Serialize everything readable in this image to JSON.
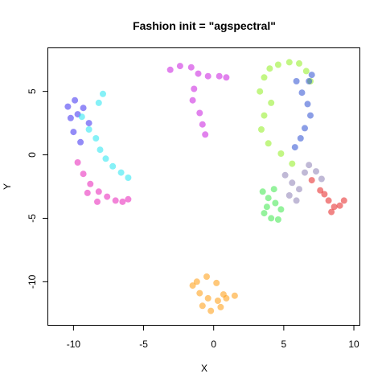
{
  "chart_data": {
    "type": "scatter",
    "title": "Fashion init = \"agspectral\"",
    "xlabel": "X",
    "ylabel": "Y",
    "xlim": [
      -11.8,
      10.4
    ],
    "ylim": [
      -13.4,
      8.4
    ],
    "xticks": [
      -10,
      -5,
      0,
      5,
      10
    ],
    "yticks": [
      -10,
      -5,
      0,
      5
    ],
    "grid": false,
    "legend": "none",
    "clusters": [
      {
        "color": "#3a2cf0",
        "x": [
          -10.4,
          -9.9,
          -9.7,
          -10.2,
          -9.3,
          -8.9,
          -10.0,
          -9.5
        ],
        "y": [
          3.8,
          4.3,
          3.2,
          2.9,
          3.7,
          2.5,
          1.8,
          1.0
        ]
      },
      {
        "color": "#22e6f0",
        "x": [
          -9.4,
          -8.9,
          -8.4,
          -8.1,
          -7.7,
          -7.2,
          -6.6,
          -6.1,
          -8.2,
          -7.9
        ],
        "y": [
          3.0,
          2.0,
          1.3,
          0.4,
          -0.3,
          -0.9,
          -1.4,
          -1.8,
          4.1,
          4.8
        ]
      },
      {
        "color": "#e81fb8",
        "x": [
          -9.7,
          -9.3,
          -8.8,
          -8.2,
          -7.6,
          -7.0,
          -6.5,
          -6.1,
          -9.0,
          -8.3
        ],
        "y": [
          -0.6,
          -1.5,
          -2.3,
          -2.9,
          -3.3,
          -3.6,
          -3.7,
          -3.5,
          -3.0,
          -3.7
        ]
      },
      {
        "color": "#c81bdf",
        "x": [
          -3.1,
          -2.4,
          -1.6,
          -1.1,
          -0.4,
          0.4,
          0.9,
          -1.4,
          -1.5,
          -1.0,
          -0.8,
          -0.6
        ],
        "y": [
          6.7,
          7.0,
          6.9,
          6.4,
          6.2,
          6.2,
          6.1,
          5.2,
          4.3,
          3.3,
          2.4,
          1.6
        ]
      },
      {
        "color": "#90ef1f",
        "x": [
          3.3,
          3.6,
          4.0,
          4.6,
          5.4,
          6.1,
          6.6,
          6.9,
          4.1,
          3.6,
          3.4,
          3.9,
          4.8,
          5.6
        ],
        "y": [
          5.0,
          6.1,
          6.8,
          7.1,
          7.3,
          7.2,
          6.6,
          5.8,
          4.1,
          3.1,
          2.0,
          0.9,
          0.1,
          -0.7
        ]
      },
      {
        "color": "#3ce84a",
        "x": [
          3.5,
          3.9,
          4.4,
          4.8,
          3.6,
          4.1,
          4.6,
          3.8,
          4.3
        ],
        "y": [
          -2.9,
          -3.4,
          -3.8,
          -4.3,
          -4.6,
          -5.0,
          -5.1,
          -4.1,
          -2.7
        ]
      },
      {
        "color": "#2c4fd1",
        "x": [
          5.9,
          6.3,
          6.7,
          6.9,
          6.5,
          6.2,
          5.8,
          6.8,
          7.0
        ],
        "y": [
          5.8,
          4.9,
          4.0,
          3.1,
          2.1,
          1.3,
          0.6,
          5.8,
          6.3
        ]
      },
      {
        "color": "#e62020",
        "x": [
          7.0,
          7.6,
          8.2,
          8.6,
          9.0,
          9.3,
          7.9,
          8.4
        ],
        "y": [
          -2.0,
          -2.8,
          -3.6,
          -4.1,
          -4.0,
          -3.6,
          -3.1,
          -4.5
        ]
      },
      {
        "color": "#8d7fb4",
        "x": [
          5.1,
          5.6,
          6.1,
          6.5,
          6.8,
          5.4,
          5.9,
          7.3,
          7.7
        ],
        "y": [
          -1.6,
          -2.2,
          -2.7,
          -1.4,
          -0.8,
          -3.2,
          -3.6,
          -1.3,
          -1.9
        ]
      },
      {
        "color": "#ff9a0d",
        "x": [
          -1.5,
          -1.0,
          -0.4,
          0.3,
          0.9,
          1.5,
          -1.2,
          -0.5,
          0.2,
          0.7,
          -0.8,
          -0.2,
          0.5
        ],
        "y": [
          -10.3,
          -10.9,
          -11.3,
          -11.5,
          -11.3,
          -11.1,
          -10.0,
          -9.6,
          -10.1,
          -11.0,
          -11.9,
          -12.3,
          -12.0
        ]
      }
    ]
  }
}
